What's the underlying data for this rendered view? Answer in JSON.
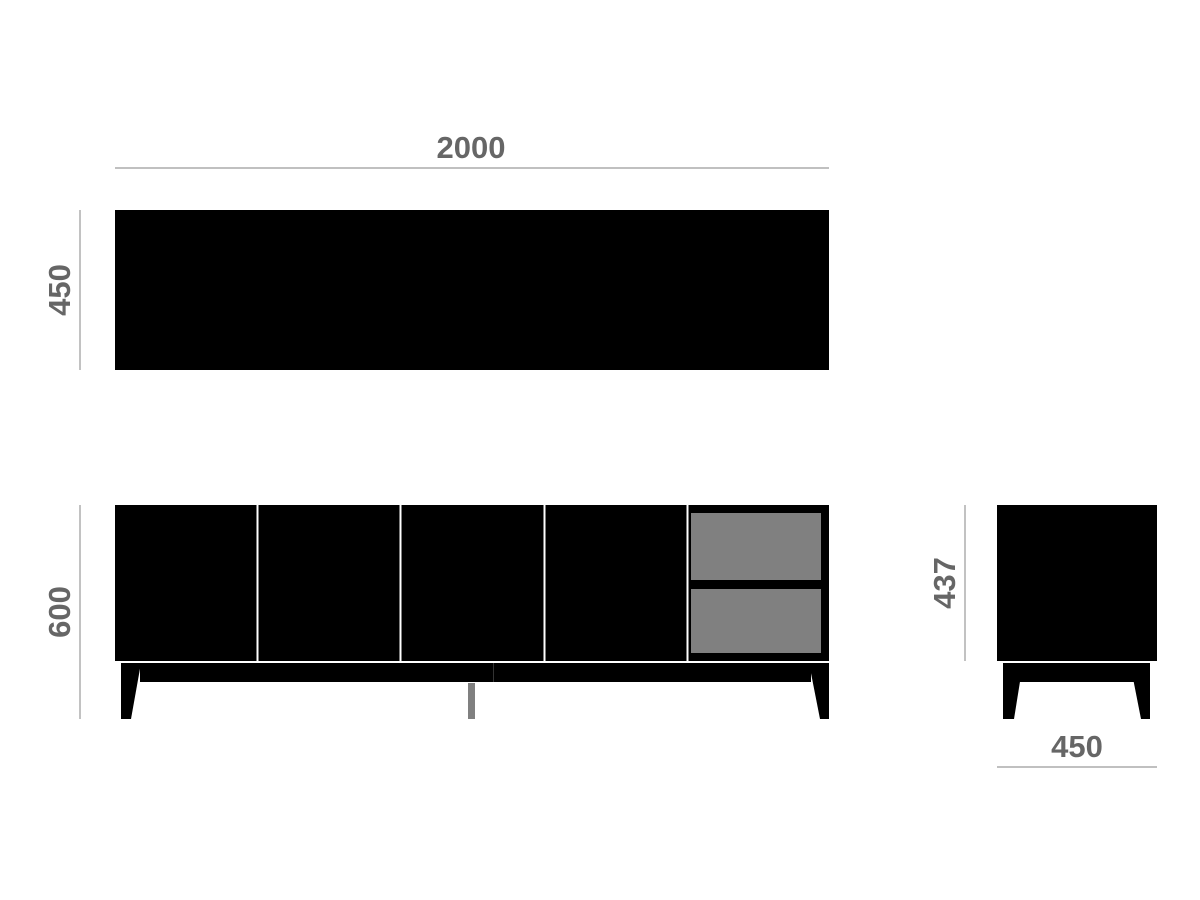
{
  "colors": {
    "body": "#000000",
    "drawer": "#808080",
    "dimension_text": "#666666",
    "dimension_line": "#9a9a9a",
    "background": "#ffffff"
  },
  "dimensions": {
    "top_width": "2000",
    "top_depth": "450",
    "front_height": "600",
    "side_height": "437",
    "side_width": "450"
  },
  "front_view": {
    "doors": 4,
    "drawers": 2
  }
}
